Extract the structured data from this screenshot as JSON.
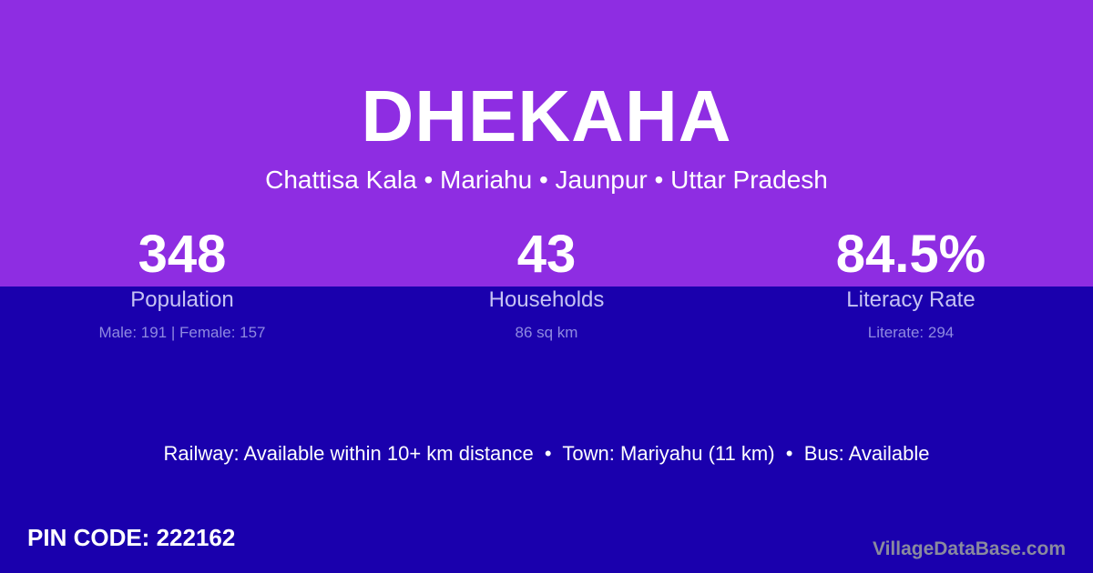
{
  "header": {
    "title": "DHEKAHA",
    "location": "Chattisa Kala • Mariahu • Jaunpur • Uttar Pradesh"
  },
  "stats": [
    {
      "value": "348",
      "label": "Population",
      "detail": "Male: 191 | Female: 157"
    },
    {
      "value": "43",
      "label": "Households",
      "detail": "86 sq km"
    },
    {
      "value": "84.5%",
      "label": "Literacy Rate",
      "detail": "Literate: 294"
    }
  ],
  "transport": "Railway: Available within 10+ km distance  •  Town: Mariyahu (11 km)  •  Bus: Available",
  "pin_code": "PIN CODE: 222162",
  "brand": "VillageDataBase.com",
  "colors": {
    "top_band": "#8e2de2",
    "background": "#1a00ad"
  }
}
